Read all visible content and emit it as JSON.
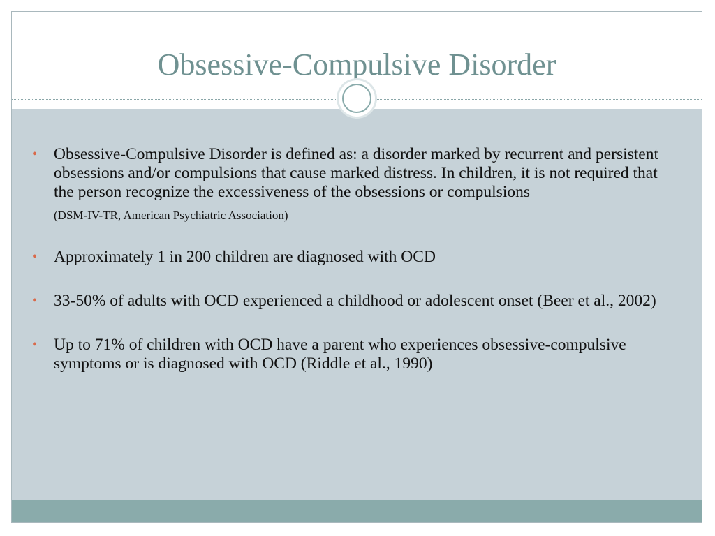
{
  "slide": {
    "title": "Obsessive-Compulsive Disorder",
    "bullets": [
      {
        "text": "Obsessive-Compulsive Disorder is defined as: a disorder marked by recurrent and persistent obsessions and/or compulsions that cause marked distress. In children, it is not required that the person recognize the excessiveness of the obsessions or compulsions",
        "citation": "(DSM-IV-TR, American Psychiatric Association)"
      },
      {
        "text": "Approximately 1 in 200 children are diagnosed with OCD"
      },
      {
        "text": "33-50% of adults with OCD experienced a childhood or adolescent onset (Beer et al., 2002)"
      },
      {
        "text": "Up to 71% of children with OCD have a parent who experiences obsessive-compulsive symptoms or is diagnosed with OCD (Riddle et al., 1990)"
      }
    ]
  }
}
